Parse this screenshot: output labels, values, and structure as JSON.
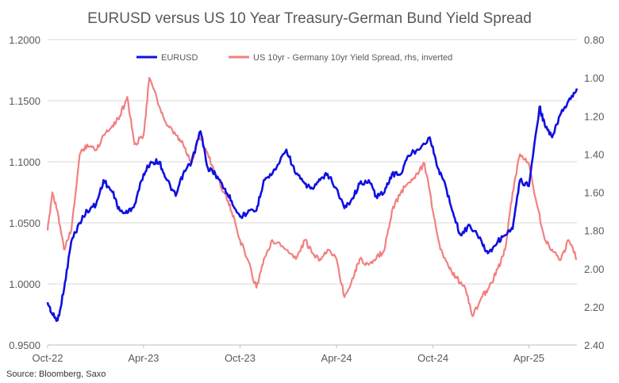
{
  "chart_data": {
    "type": "line",
    "title": "EURUSD versus US 10 Year Treasury-German Bund Yield Spread",
    "source": "Source: Bloomberg, Saxo",
    "x_labels": [
      "Oct-22",
      "Apr-23",
      "Oct-23",
      "Apr-24",
      "Oct-24",
      "Apr-25"
    ],
    "y_left": {
      "ticks": [
        "0.9500",
        "1.0000",
        "1.0500",
        "1.1000",
        "1.1500",
        "1.2000"
      ],
      "ylim": [
        0.95,
        1.2
      ]
    },
    "y_right": {
      "ticks": [
        "0.80",
        "1.00",
        "1.20",
        "1.40",
        "1.60",
        "1.80",
        "2.00",
        "2.20",
        "2.40"
      ],
      "ylim": [
        0.8,
        2.4
      ],
      "inverted": true
    },
    "grid": "horizontal",
    "legend_position": "top-center",
    "series": [
      {
        "name": "EURUSD",
        "axis": "left",
        "color": "#1010e0",
        "x": [
          "2022-10-01",
          "2022-10-10",
          "2022-10-20",
          "2022-11-01",
          "2022-11-15",
          "2022-12-01",
          "2022-12-15",
          "2023-01-01",
          "2023-01-15",
          "2023-02-01",
          "2023-02-15",
          "2023-03-01",
          "2023-03-15",
          "2023-04-01",
          "2023-04-15",
          "2023-05-01",
          "2023-05-15",
          "2023-06-01",
          "2023-06-15",
          "2023-07-01",
          "2023-07-18",
          "2023-08-01",
          "2023-08-15",
          "2023-09-01",
          "2023-09-15",
          "2023-10-01",
          "2023-10-15",
          "2023-11-01",
          "2023-11-15",
          "2023-12-01",
          "2023-12-28",
          "2024-01-15",
          "2024-02-01",
          "2024-02-15",
          "2024-03-01",
          "2024-03-15",
          "2024-04-01",
          "2024-04-16",
          "2024-05-01",
          "2024-05-15",
          "2024-06-01",
          "2024-06-15",
          "2024-07-01",
          "2024-07-15",
          "2024-08-01",
          "2024-08-15",
          "2024-09-01",
          "2024-09-25",
          "2024-10-10",
          "2024-10-25",
          "2024-11-10",
          "2024-11-22",
          "2024-12-10",
          "2025-01-01",
          "2025-01-13",
          "2025-02-01",
          "2025-02-15",
          "2025-03-01",
          "2025-03-15",
          "2025-04-01",
          "2025-04-21",
          "2025-05-01",
          "2025-05-15",
          "2025-06-01",
          "2025-06-15",
          "2025-07-01"
        ],
        "y": [
          0.985,
          0.975,
          0.97,
          0.995,
          1.035,
          1.05,
          1.06,
          1.065,
          1.085,
          1.075,
          1.06,
          1.058,
          1.065,
          1.09,
          1.1,
          1.1,
          1.085,
          1.072,
          1.09,
          1.1,
          1.125,
          1.095,
          1.09,
          1.078,
          1.068,
          1.055,
          1.058,
          1.06,
          1.085,
          1.09,
          1.11,
          1.09,
          1.082,
          1.078,
          1.085,
          1.09,
          1.078,
          1.062,
          1.07,
          1.082,
          1.085,
          1.072,
          1.075,
          1.09,
          1.09,
          1.105,
          1.11,
          1.12,
          1.095,
          1.08,
          1.055,
          1.04,
          1.048,
          1.035,
          1.025,
          1.035,
          1.04,
          1.045,
          1.085,
          1.08,
          1.145,
          1.13,
          1.12,
          1.14,
          1.15,
          1.16
        ]
      },
      {
        "name": "US 10yr - Germany 10yr Yield Spread, rhs, inverted",
        "axis": "right",
        "color": "#f28080",
        "x": [
          "2022-10-01",
          "2022-10-10",
          "2022-10-20",
          "2022-11-01",
          "2022-11-15",
          "2022-12-01",
          "2022-12-15",
          "2023-01-01",
          "2023-01-15",
          "2023-02-01",
          "2023-02-15",
          "2023-03-01",
          "2023-03-15",
          "2023-04-01",
          "2023-04-12",
          "2023-05-01",
          "2023-05-15",
          "2023-06-01",
          "2023-06-15",
          "2023-07-01",
          "2023-07-15",
          "2023-08-01",
          "2023-08-15",
          "2023-09-01",
          "2023-09-15",
          "2023-10-01",
          "2023-10-15",
          "2023-11-01",
          "2023-11-15",
          "2023-12-01",
          "2023-12-28",
          "2024-01-15",
          "2024-02-01",
          "2024-02-15",
          "2024-03-01",
          "2024-03-15",
          "2024-04-01",
          "2024-04-16",
          "2024-05-01",
          "2024-05-15",
          "2024-06-01",
          "2024-06-15",
          "2024-07-01",
          "2024-07-15",
          "2024-08-01",
          "2024-08-15",
          "2024-09-01",
          "2024-09-15",
          "2024-10-01",
          "2024-10-15",
          "2024-11-01",
          "2024-11-15",
          "2024-12-01",
          "2024-12-15",
          "2025-01-01",
          "2025-01-15",
          "2025-02-01",
          "2025-02-15",
          "2025-03-01",
          "2025-03-15",
          "2025-04-01",
          "2025-04-15",
          "2025-05-01",
          "2025-05-15",
          "2025-06-01",
          "2025-06-15",
          "2025-07-01"
        ],
        "y": [
          1.8,
          1.6,
          1.7,
          1.9,
          1.8,
          1.4,
          1.35,
          1.38,
          1.3,
          1.25,
          1.2,
          1.1,
          1.35,
          1.3,
          1.0,
          1.15,
          1.25,
          1.3,
          1.35,
          1.45,
          1.3,
          1.4,
          1.5,
          1.6,
          1.7,
          1.85,
          1.95,
          2.1,
          1.95,
          1.85,
          1.9,
          1.95,
          1.85,
          1.92,
          1.95,
          1.9,
          1.95,
          2.15,
          2.05,
          1.95,
          1.98,
          1.95,
          1.9,
          1.7,
          1.6,
          1.55,
          1.5,
          1.45,
          1.7,
          1.9,
          2.0,
          2.05,
          2.1,
          2.25,
          2.15,
          2.1,
          2.0,
          1.9,
          1.6,
          1.4,
          1.45,
          1.65,
          1.85,
          1.9,
          1.95,
          1.85,
          1.95
        ]
      }
    ]
  }
}
